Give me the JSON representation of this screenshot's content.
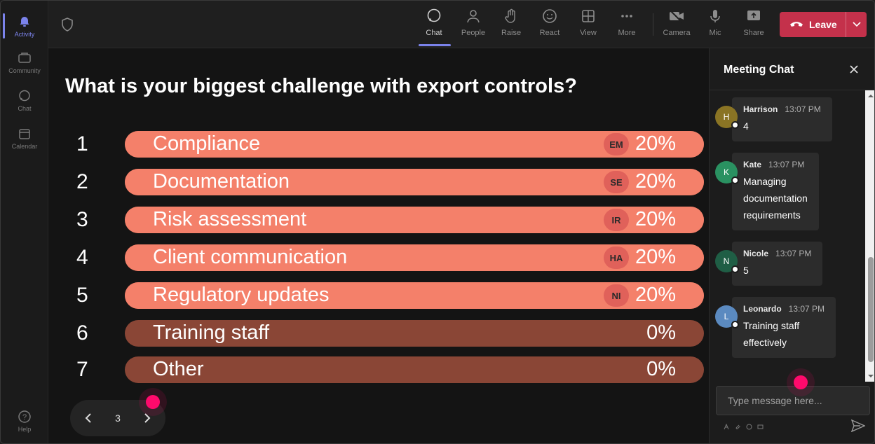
{
  "rail": {
    "items": [
      {
        "label": "Activity",
        "icon": "bell-icon",
        "active": true
      },
      {
        "label": "Community",
        "icon": "community-icon",
        "active": false
      },
      {
        "label": "Chat",
        "icon": "chat-icon",
        "active": false
      },
      {
        "label": "Calendar",
        "icon": "calendar-icon",
        "active": false
      },
      {
        "label": "Help",
        "icon": "help-icon",
        "active": false
      }
    ]
  },
  "toolbar": {
    "chat": "Chat",
    "people": "People",
    "raise": "Raise",
    "react": "React",
    "view": "View",
    "more": "More",
    "camera": "Camera",
    "mic": "Mic",
    "share": "Share",
    "leave": "Leave",
    "accent": "#7b83eb",
    "leave_color": "#c4314b"
  },
  "poll": {
    "question": "What is your biggest challenge with export controls?",
    "colors": {
      "filled": "#f4806a",
      "empty": "#8a4636",
      "avatar": "#e0615a"
    },
    "options": [
      {
        "num": "1",
        "label": "Compliance",
        "avatar": "EM",
        "pct": "20%",
        "fill": 1.0
      },
      {
        "num": "2",
        "label": "Documentation",
        "avatar": "SE",
        "pct": "20%",
        "fill": 1.0
      },
      {
        "num": "3",
        "label": "Risk assessment",
        "avatar": "IR",
        "pct": "20%",
        "fill": 1.0
      },
      {
        "num": "4",
        "label": "Client communication",
        "avatar": "HA",
        "pct": "20%",
        "fill": 1.0
      },
      {
        "num": "5",
        "label": "Regulatory updates",
        "avatar": "NI",
        "pct": "20%",
        "fill": 1.0
      },
      {
        "num": "6",
        "label": "Training staff",
        "avatar": "",
        "pct": "0%",
        "fill": 0.0
      },
      {
        "num": "7",
        "label": "Other",
        "avatar": "",
        "pct": "0%",
        "fill": 0.0
      }
    ],
    "page": "3"
  },
  "chat": {
    "title": "Meeting Chat",
    "placeholder": "Type message here...",
    "messages": [
      {
        "initial": "H",
        "name": "Harrison",
        "time": "13:07 PM",
        "lines": [
          "4"
        ],
        "color": "#8a7424"
      },
      {
        "initial": "K",
        "name": "Kate",
        "time": "13:07 PM",
        "lines": [
          "Managing",
          "documentation",
          "requirements"
        ],
        "color": "#2a9161"
      },
      {
        "initial": "N",
        "name": "Nicole",
        "time": "13:07 PM",
        "lines": [
          "5"
        ],
        "color": "#1f5e45"
      },
      {
        "initial": "L",
        "name": "Leonardo",
        "time": "13:07 PM",
        "lines": [
          "Training staff",
          "effectively"
        ],
        "color": "#5b8ac0"
      }
    ]
  }
}
